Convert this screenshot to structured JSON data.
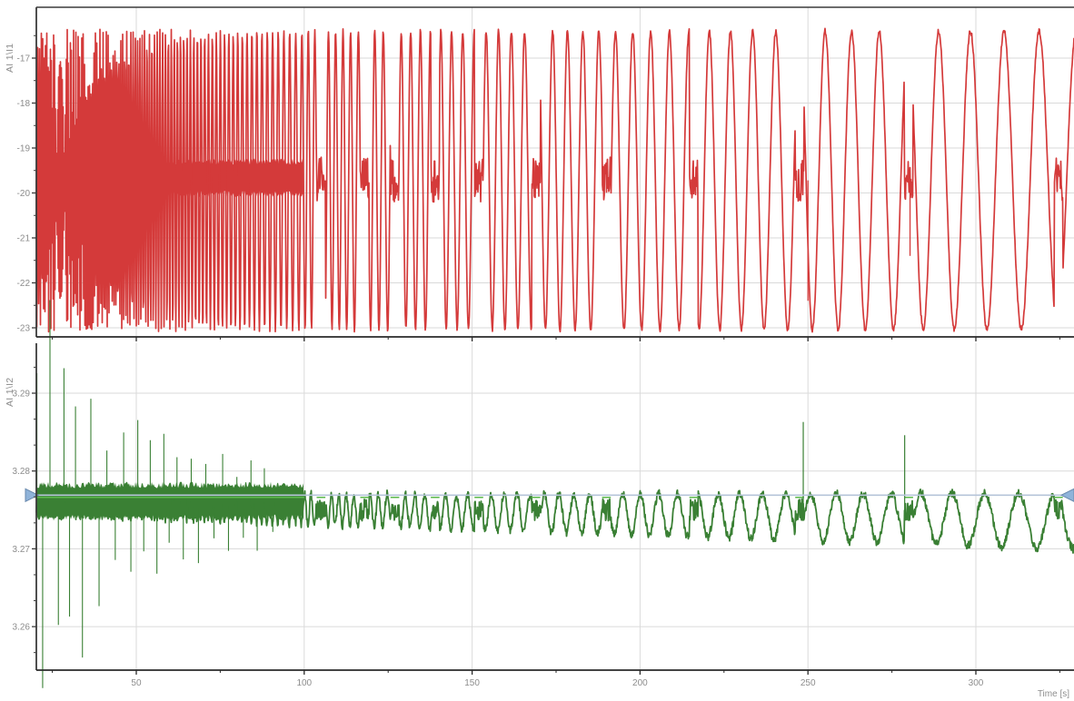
{
  "styles": {
    "background": "#ffffff",
    "grid": "#dadada",
    "spine": "#3b3b3b",
    "axis_bottom": "#2a2a2a",
    "tick_label": "#8d8d8d"
  },
  "time_axis": {
    "label": "Time [s]",
    "range": [
      20.24,
      329.22
    ],
    "major_ticks": [
      50,
      100,
      150,
      200,
      250,
      300
    ],
    "major_tick_labels": [
      "50",
      "100",
      "150",
      "200",
      "250",
      "300"
    ],
    "minor_step": 25
  },
  "sweep": {
    "coef": 530,
    "exp": -1.5
  },
  "bursts": {
    "times": [
      105,
      118,
      127,
      139,
      152,
      169,
      190,
      216,
      247.5,
      280,
      324.6
    ],
    "width": 2.6
  },
  "chart_data": [
    {
      "type": "line",
      "channel": "AI 1\\I1",
      "color": "#d43a3a",
      "y_range": [
        -23.202,
        -15.869
      ],
      "y_ticks": [
        -17,
        -18,
        -19,
        -20,
        -21,
        -22,
        -23
      ],
      "y_tick_labels": [
        "-17",
        "-18",
        "-19",
        "-20",
        "-21",
        "-22",
        "-23"
      ],
      "y_minors_between": 1,
      "signal": {
        "kind": "decreasing-frequency sine sweep with periodic dwell bursts",
        "center": -19.72,
        "amplitude": 3.32,
        "noise": 0.06,
        "solid_band": {
          "from": 20.24,
          "to": 100,
          "top": -19.3,
          "bottom": -20.02,
          "jitter": 0.07
        },
        "burst_band": {
          "top": -19.2,
          "bottom": -20.2
        },
        "spikes": [
          {
            "t": 250.0,
            "v": -22.4
          },
          {
            "t": 280.4,
            "v": -21.4
          }
        ]
      }
    },
    {
      "type": "line",
      "channel": "AI 1\\I2",
      "color": "#3a8034",
      "bright_color": "#5cba4c",
      "y_range": [
        3.254411,
        3.296418
      ],
      "y_ticks": [
        3.29,
        3.28,
        3.27,
        3.26
      ],
      "y_tick_labels": [
        "3.29",
        "3.28",
        "3.27",
        "3.26"
      ],
      "y_minors_between": 2,
      "signal": {
        "kind": "same sweep, small amplitude, decaying transient spikes at start",
        "center_start": 3.2756,
        "center_end": 3.2736,
        "amplitude_start": 0.0013,
        "amplitude_end": 0.0036,
        "phase_offset": 3.6,
        "noise": 0.0011,
        "solid_band": {
          "from": 20.24,
          "to": 100,
          "top": 3.2782,
          "bottom": 3.274,
          "jitter": 0.0004
        },
        "burst_band": {
          "top": 3.2764,
          "bottom": 3.2736
        },
        "mean_line": 3.2766,
        "decay_spikes": {
          "from": 20.4,
          "to": 92,
          "spacing": 2.1,
          "amp0": 0.019,
          "tau": 26,
          "floor": 0.0032
        },
        "spikes": [
          {
            "t": 248.6,
            "v": 3.2863
          },
          {
            "t": 278.8,
            "v": 3.2846
          }
        ]
      },
      "cursor": {
        "value": 3.2769,
        "line_color": "#b6c5d9",
        "marker_fill": "#8fb3d9",
        "marker_stroke": "#6889ad"
      }
    }
  ]
}
